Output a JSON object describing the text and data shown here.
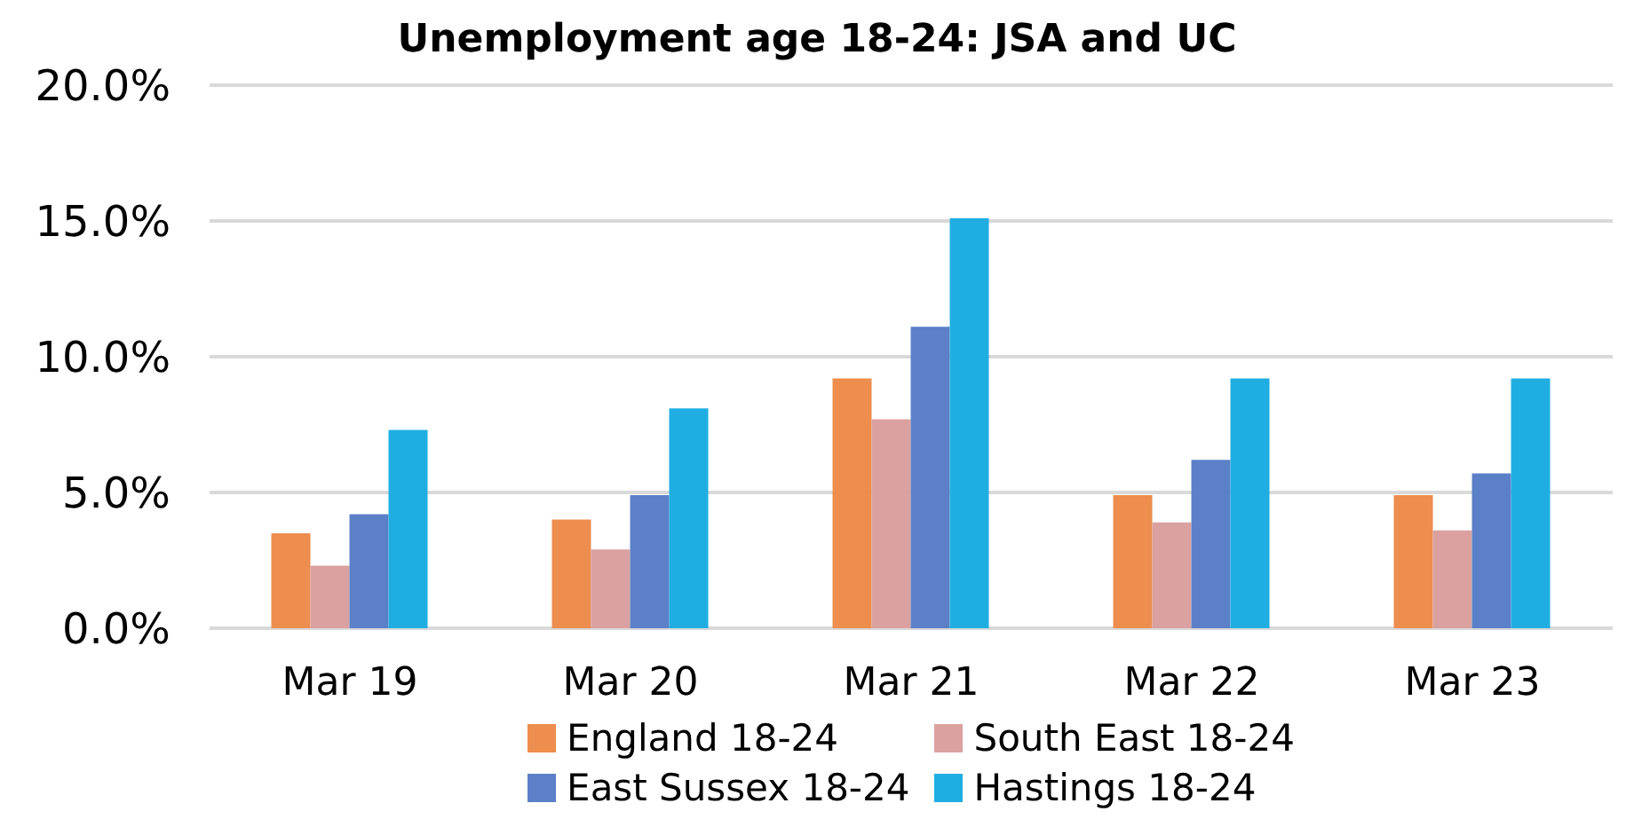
{
  "chart_data": {
    "type": "bar",
    "title": "Unemployment age 18-24: JSA and UC",
    "categories": [
      "Mar 19",
      "Mar 20",
      "Mar 21",
      "Mar 22",
      "Mar 23"
    ],
    "series": [
      {
        "name": "England 18-24",
        "color": "#ed8d4e",
        "values": [
          3.5,
          4.0,
          9.2,
          4.9,
          4.9
        ]
      },
      {
        "name": "South East 18-24",
        "color": "#dba1a0",
        "values": [
          2.3,
          2.9,
          7.7,
          3.9,
          3.6
        ]
      },
      {
        "name": "East Sussex 18-24",
        "color": "#5b80c8",
        "values": [
          4.2,
          4.9,
          11.1,
          6.2,
          5.7
        ]
      },
      {
        "name": "Hastings 18-24",
        "color": "#20aee2",
        "values": [
          7.3,
          8.1,
          15.1,
          9.2,
          9.2
        ]
      }
    ],
    "ylim": [
      0,
      20
    ],
    "yticks": [
      {
        "value": 0,
        "label": "0.0%"
      },
      {
        "value": 5,
        "label": "5.0%"
      },
      {
        "value": 10,
        "label": "10.0%"
      },
      {
        "value": 15,
        "label": "15.0%"
      },
      {
        "value": 20,
        "label": "20.0%"
      }
    ],
    "grid": "y",
    "legend": "bottom"
  }
}
